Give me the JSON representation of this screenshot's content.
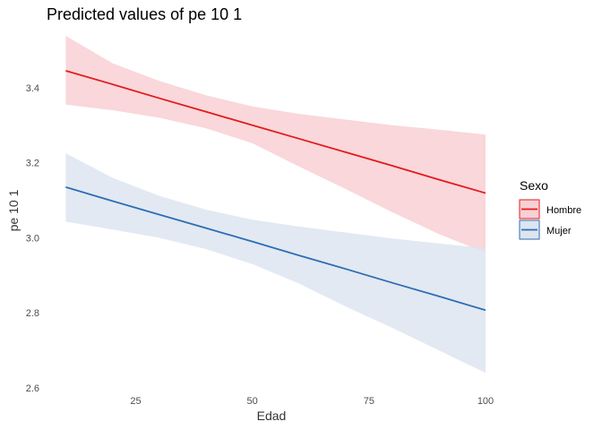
{
  "chart_data": {
    "type": "line",
    "title": "Predicted values of pe 10 1",
    "xlabel": "Edad",
    "ylabel": "pe 10 1",
    "xlim": [
      8,
      100
    ],
    "ylim": [
      2.6,
      3.55
    ],
    "x_ticks": [
      25,
      50,
      75,
      100
    ],
    "x_tick_labels": [
      "25",
      "50",
      "75",
      "100"
    ],
    "y_ticks": [
      2.6,
      2.8,
      3.0,
      3.2,
      3.4
    ],
    "y_tick_labels": [
      "2.6",
      "2.8",
      "3.0",
      "3.2",
      "3.4"
    ],
    "grid": false,
    "legend": {
      "title": "Sexo",
      "placement": "right"
    },
    "series": [
      {
        "name": "Hombre",
        "color": "#E41A1C",
        "band_color": "#F8D0D4",
        "x": [
          10,
          20,
          30,
          40,
          50,
          60,
          70,
          80,
          90,
          100
        ],
        "y": [
          3.445,
          3.409,
          3.372,
          3.336,
          3.3,
          3.264,
          3.228,
          3.192,
          3.155,
          3.119
        ],
        "lower": [
          3.355,
          3.34,
          3.32,
          3.292,
          3.252,
          3.19,
          3.13,
          3.068,
          3.01,
          2.96
        ],
        "upper": [
          3.538,
          3.465,
          3.418,
          3.38,
          3.35,
          3.33,
          3.315,
          3.3,
          3.288,
          3.275
        ]
      },
      {
        "name": "Mujer",
        "color": "#2E6DB4",
        "band_color": "#DDE5F0",
        "x": [
          10,
          20,
          30,
          40,
          50,
          60,
          70,
          80,
          90,
          100
        ],
        "y": [
          3.135,
          3.098,
          3.062,
          3.026,
          2.99,
          2.953,
          2.917,
          2.88,
          2.844,
          2.807
        ],
        "lower": [
          3.043,
          3.022,
          3.0,
          2.97,
          2.93,
          2.878,
          2.817,
          2.76,
          2.7,
          2.64
        ],
        "upper": [
          3.225,
          3.16,
          3.112,
          3.075,
          3.048,
          3.03,
          3.014,
          2.998,
          2.985,
          2.972
        ]
      }
    ]
  }
}
